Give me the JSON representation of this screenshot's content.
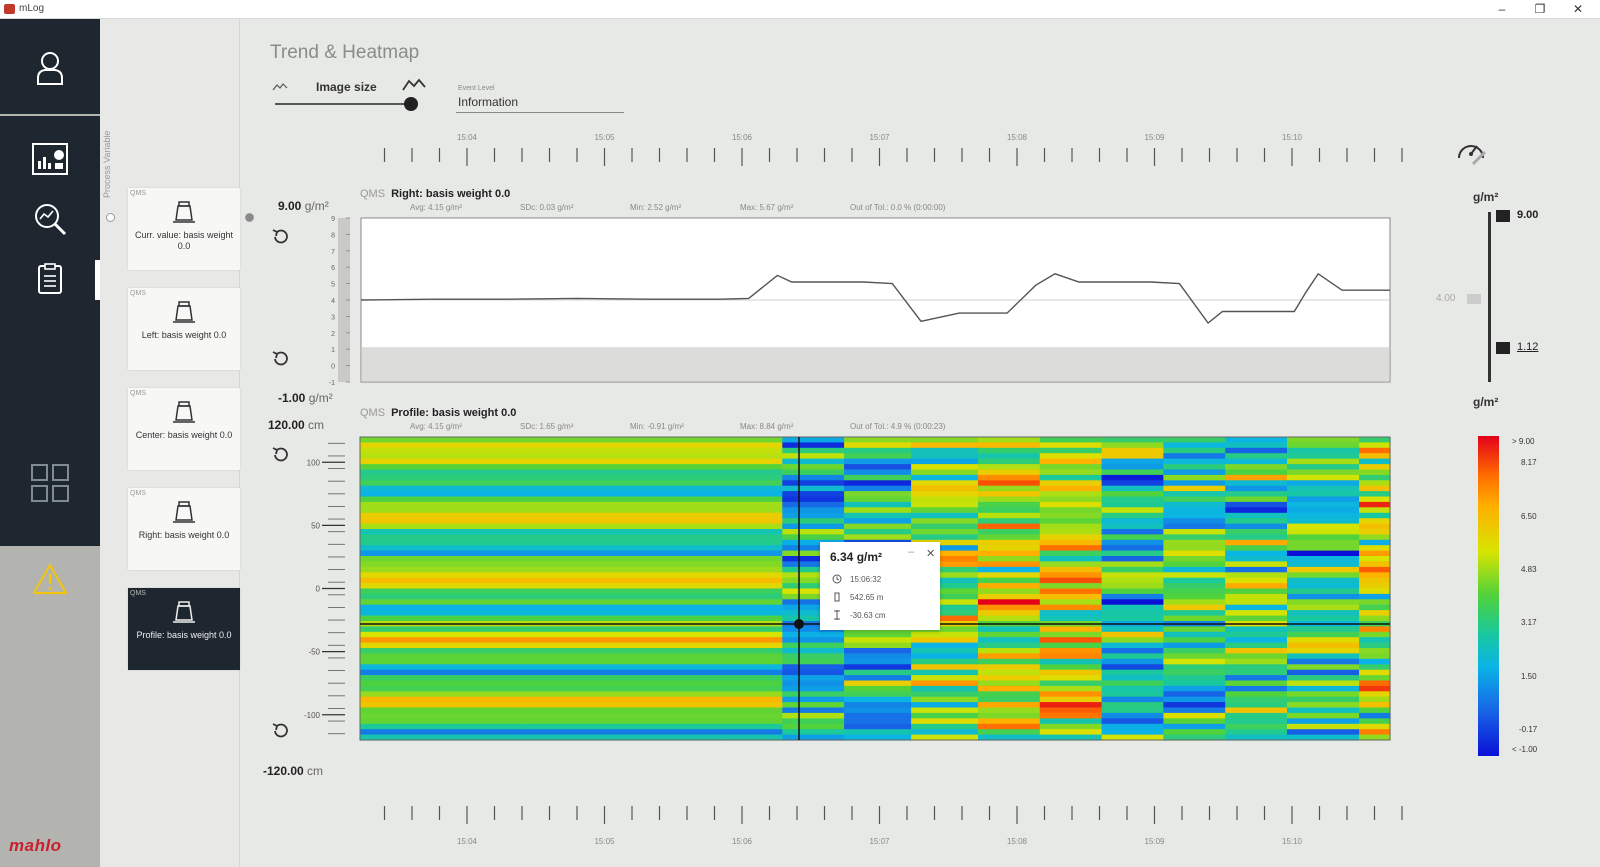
{
  "window": {
    "title": "mLog",
    "minimize": "–",
    "maximize": "❐",
    "close": "✕"
  },
  "nav": {
    "logo": "mahlo",
    "items": [
      "user-icon",
      "dashboard-icon",
      "search-analysis-icon",
      "report-icon",
      "apps-grid-icon",
      "warning-icon"
    ]
  },
  "var_panel": {
    "label": "Process Variable",
    "cards": [
      {
        "qms": "QMS",
        "label": "Curr. value: basis weight 0.0",
        "selected": false
      },
      {
        "qms": "QMS",
        "label": "Left: basis weight 0.0",
        "selected": false
      },
      {
        "qms": "QMS",
        "label": "Center: basis weight 0.0",
        "selected": false
      },
      {
        "qms": "QMS",
        "label": "Right: basis weight 0.0",
        "selected": false
      },
      {
        "qms": "QMS",
        "label": "Profile: basis weight 0.0",
        "selected": true
      }
    ]
  },
  "page": {
    "title": "Trend & Heatmap",
    "image_size_label": "Image size",
    "image_size_level": 0.95,
    "event_level_label": "Event Level",
    "event_level_value": "Information"
  },
  "time_axis": {
    "labels": [
      "15:04",
      "15:05",
      "15:06",
      "15:07",
      "15:08",
      "15:09",
      "15:10"
    ]
  },
  "trend": {
    "qms": "QMS",
    "title": "Right: basis weight 0.0",
    "stats": [
      "Avg: 4.15 g/m²",
      "SDc: 0.03 g/m²",
      "Min: 2.52 g/m²",
      "Max: 5.67 g/m²",
      "Out of Tol.: 0.0 % (0:00:00)"
    ],
    "y_max_value": "9.00",
    "y_min_value": "-1.00",
    "y_unit": "g/m²",
    "y_ticks": [
      "9",
      "8",
      "7",
      "6",
      "5",
      "4",
      "3",
      "2",
      "1",
      "0",
      "-1"
    ],
    "setpoint_label": "4.00"
  },
  "heatmap": {
    "qms": "QMS",
    "title": "Profile: basis weight 0.0",
    "stats": [
      "Avg: 4.15 g/m²",
      "SDc: 1.65 g/m²",
      "Min: -0.91 g/m²",
      "Max: 8.84 g/m²",
      "Out of Tol.: 4.9 % (0:00:23)"
    ],
    "y_max_value": "120.00",
    "y_min_value": "-120.00",
    "y_unit": "cm",
    "y_ticks": [
      "100",
      "50",
      "0",
      "-50",
      "-100"
    ]
  },
  "tooltip": {
    "value": "6.34 g/m²",
    "time": "15:06:32",
    "length": "542.65 m",
    "position": "-30.63 cm"
  },
  "trend_scale": {
    "unit": "g/m²",
    "max": "9.00",
    "min": "1.12"
  },
  "colorbar": {
    "unit": "g/m²",
    "labels": [
      "> 9.00",
      "8.17",
      "6.50",
      "4.83",
      "3.17",
      "1.50",
      "-0.17",
      "< -1.00"
    ]
  },
  "chart_data": {
    "type": "line",
    "title": "Right: basis weight 0.0",
    "ylabel": "g/m²",
    "ylim": [
      -1,
      9
    ],
    "x": [
      "15:03:30",
      "15:04:00",
      "15:04:30",
      "15:05:00",
      "15:05:30",
      "15:06:00",
      "15:06:12",
      "15:06:24",
      "15:06:30",
      "15:07:00",
      "15:07:12",
      "15:07:24",
      "15:07:40",
      "15:08:00",
      "15:08:12",
      "15:08:20",
      "15:08:30",
      "15:09:00",
      "15:09:12",
      "15:09:24",
      "15:09:30",
      "15:10:00",
      "15:10:05",
      "15:10:10",
      "15:10:20",
      "15:10:40"
    ],
    "series": [
      {
        "name": "Right: basis weight 0.0",
        "values": [
          4.0,
          4.05,
          4.05,
          4.1,
          4.05,
          4.05,
          4.1,
          5.5,
          5.1,
          5.1,
          5.0,
          2.7,
          3.2,
          3.2,
          4.9,
          5.6,
          5.1,
          5.1,
          5.0,
          2.6,
          3.3,
          3.3,
          4.5,
          5.6,
          4.6,
          4.6
        ]
      }
    ]
  }
}
